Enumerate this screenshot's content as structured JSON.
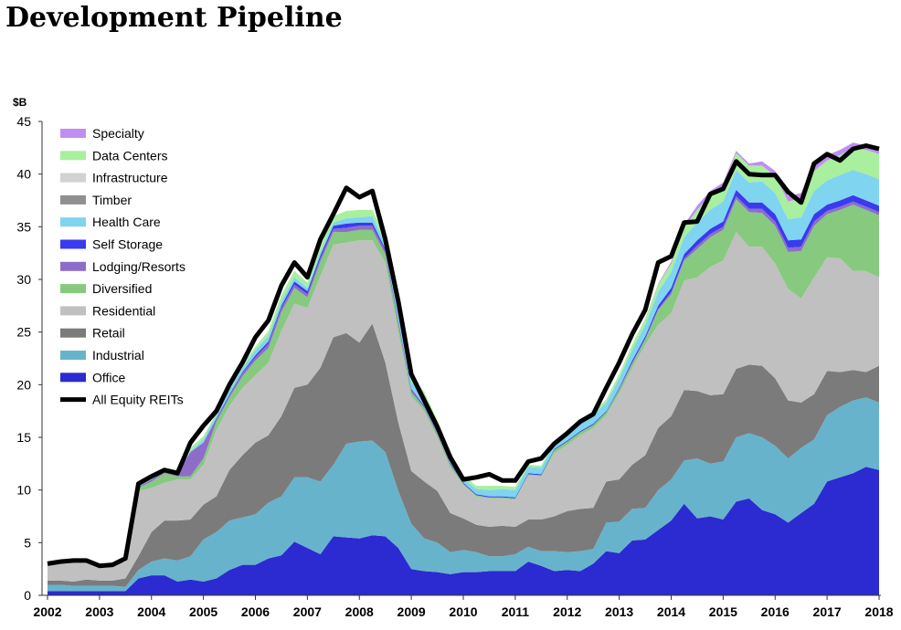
{
  "page": {
    "title": "Development Pipeline"
  },
  "chart_data": {
    "type": "area",
    "title": "Development Pipeline",
    "ylabel": "$B",
    "xlabel": "",
    "ylim": [
      0,
      45
    ],
    "xlim": [
      2002.0,
      2018.0
    ],
    "yticks": [
      "0",
      "5",
      "10",
      "15",
      "20",
      "25",
      "30",
      "35",
      "40",
      "45"
    ],
    "xticks": [
      "2002",
      "2003",
      "2004",
      "2005",
      "2006",
      "2007",
      "2008",
      "2009",
      "2010",
      "2011",
      "2012",
      "2013",
      "2014",
      "2015",
      "2016",
      "2017",
      "2018"
    ],
    "legend_position": "top-left",
    "grid": false,
    "stacked": true,
    "x": [
      2002.0,
      2002.25,
      2002.5,
      2002.75,
      2003.0,
      2003.25,
      2003.5,
      2003.75,
      2004.0,
      2004.25,
      2004.5,
      2004.75,
      2005.0,
      2005.25,
      2005.5,
      2005.75,
      2006.0,
      2006.25,
      2006.5,
      2006.75,
      2007.0,
      2007.25,
      2007.5,
      2007.75,
      2008.0,
      2008.25,
      2008.5,
      2008.75,
      2009.0,
      2009.25,
      2009.5,
      2009.75,
      2010.0,
      2010.25,
      2010.5,
      2010.75,
      2011.0,
      2011.25,
      2011.5,
      2011.75,
      2012.0,
      2012.25,
      2012.5,
      2012.75,
      2013.0,
      2013.25,
      2013.5,
      2013.75,
      2014.0,
      2014.25,
      2014.5,
      2014.75,
      2015.0,
      2015.25,
      2015.5,
      2015.75,
      2016.0,
      2016.25,
      2016.5,
      2016.75,
      2017.0,
      2017.25,
      2017.5,
      2017.75,
      2018.0
    ],
    "series": [
      {
        "name": "Office",
        "color": "#2b2bd1",
        "values": [
          0.4,
          0.4,
          0.4,
          0.4,
          0.4,
          0.4,
          0.4,
          1.6,
          1.9,
          1.9,
          1.3,
          1.5,
          1.3,
          1.6,
          2.4,
          2.9,
          2.9,
          3.5,
          3.8,
          5.1,
          4.5,
          3.9,
          5.6,
          5.5,
          5.4,
          5.7,
          5.6,
          4.5,
          2.5,
          2.3,
          2.2,
          2.0,
          2.2,
          2.2,
          2.3,
          2.3,
          2.3,
          3.2,
          2.8,
          2.3,
          2.4,
          2.3,
          3.0,
          4.2,
          4.0,
          5.2,
          5.3,
          6.2,
          7.1,
          8.7,
          7.3,
          7.5,
          7.2,
          8.9,
          9.2,
          8.1,
          7.7,
          6.9,
          7.8,
          8.7,
          10.8,
          11.2,
          11.6,
          12.2,
          11.9
        ]
      },
      {
        "name": "Industrial",
        "color": "#67b3cc",
        "values": [
          0.6,
          0.6,
          0.5,
          0.5,
          0.5,
          0.5,
          0.4,
          0.8,
          1.3,
          1.6,
          2.0,
          2.2,
          4.0,
          4.4,
          4.7,
          4.5,
          4.8,
          5.3,
          5.6,
          6.1,
          6.7,
          6.9,
          6.8,
          8.9,
          9.2,
          9.0,
          8.0,
          5.4,
          4.3,
          3.1,
          2.8,
          2.1,
          2.1,
          1.9,
          1.4,
          1.4,
          1.6,
          1.4,
          1.4,
          1.9,
          1.7,
          1.9,
          1.4,
          2.7,
          3.0,
          3.0,
          3.0,
          3.8,
          3.9,
          4.1,
          5.7,
          5.0,
          5.5,
          6.1,
          6.2,
          6.9,
          6.5,
          6.1,
          6.2,
          6.1,
          6.3,
          6.7,
          6.9,
          6.6,
          6.4
        ]
      },
      {
        "name": "Retail",
        "color": "#7b7b7b",
        "values": [
          0.4,
          0.4,
          0.4,
          0.6,
          0.5,
          0.5,
          0.8,
          1.3,
          2.8,
          3.6,
          3.8,
          3.5,
          3.3,
          3.4,
          4.8,
          5.9,
          6.8,
          6.4,
          7.6,
          8.5,
          8.8,
          10.8,
          12.1,
          10.5,
          9.4,
          11.1,
          8.5,
          6.5,
          5.0,
          5.4,
          4.9,
          3.7,
          3.0,
          2.6,
          2.8,
          2.9,
          2.6,
          2.6,
          3.0,
          3.3,
          3.9,
          4.0,
          3.9,
          3.9,
          4.0,
          4.2,
          5.0,
          5.9,
          6.0,
          6.7,
          6.4,
          6.5,
          6.4,
          6.5,
          6.5,
          6.8,
          6.4,
          5.5,
          4.3,
          4.3,
          4.2,
          3.3,
          2.9,
          2.4,
          3.5
        ]
      },
      {
        "name": "Residential",
        "color": "#c0c0c0",
        "values": [
          1.6,
          1.8,
          2.0,
          1.8,
          1.5,
          1.5,
          1.6,
          6.2,
          4.2,
          3.6,
          3.9,
          3.8,
          3.8,
          6.3,
          6.1,
          6.4,
          6.4,
          6.9,
          8.1,
          8.0,
          7.3,
          8.7,
          8.8,
          8.6,
          9.7,
          7.9,
          9.5,
          8.6,
          7.1,
          6.7,
          5.1,
          4.3,
          3.2,
          2.7,
          2.7,
          2.6,
          2.6,
          4.2,
          4.1,
          6.0,
          6.3,
          7.0,
          7.6,
          6.3,
          8.2,
          9.2,
          10.5,
          9.8,
          9.8,
          10.4,
          10.8,
          12.2,
          12.7,
          13.0,
          11.2,
          11.3,
          10.9,
          10.6,
          9.9,
          11.1,
          10.8,
          10.8,
          9.4,
          9.6,
          8.4
        ]
      },
      {
        "name": "Diversified",
        "color": "#86c97f",
        "values": [
          0.0,
          0.0,
          0.0,
          0.0,
          0.0,
          0.0,
          0.0,
          0.3,
          0.6,
          0.9,
          0.3,
          0.3,
          0.6,
          0.8,
          0.8,
          1.1,
          1.4,
          1.4,
          1.8,
          1.5,
          1.0,
          1.4,
          1.2,
          1.0,
          1.0,
          1.0,
          0.8,
          0.7,
          0.4,
          0.3,
          0.3,
          0.3,
          0.1,
          0.1,
          0.1,
          0.1,
          0.1,
          0.1,
          0.1,
          0.3,
          0.3,
          0.3,
          0.3,
          0.3,
          0.3,
          0.4,
          0.5,
          1.4,
          1.8,
          1.9,
          2.7,
          2.8,
          2.9,
          3.1,
          3.3,
          3.2,
          3.6,
          3.5,
          4.5,
          4.9,
          4.1,
          4.6,
          6.3,
          5.8,
          5.9
        ]
      },
      {
        "name": "Lodging/Resorts",
        "color": "#8e6dc9",
        "values": [
          0.0,
          0.0,
          0.0,
          0.0,
          0.0,
          0.0,
          0.0,
          0.1,
          0.2,
          0.2,
          0.3,
          2.3,
          1.5,
          0.2,
          0.2,
          0.3,
          0.3,
          0.4,
          0.4,
          0.3,
          0.3,
          0.3,
          0.3,
          0.4,
          0.4,
          0.4,
          0.3,
          0.2,
          0.2,
          0.1,
          0.1,
          0.1,
          0.0,
          0.0,
          0.0,
          0.0,
          0.0,
          0.0,
          0.0,
          0.0,
          0.0,
          0.0,
          0.0,
          0.0,
          0.1,
          0.1,
          0.1,
          0.1,
          0.2,
          0.2,
          0.3,
          0.3,
          0.3,
          0.3,
          0.3,
          0.4,
          0.4,
          0.4,
          0.4,
          0.4,
          0.3,
          0.3,
          0.3,
          0.3,
          0.3
        ]
      },
      {
        "name": "Self Storage",
        "color": "#3a3aee",
        "values": [
          0.0,
          0.0,
          0.0,
          0.0,
          0.0,
          0.0,
          0.0,
          0.0,
          0.0,
          0.0,
          0.0,
          0.0,
          0.0,
          0.1,
          0.1,
          0.1,
          0.2,
          0.2,
          0.2,
          0.3,
          0.3,
          0.3,
          0.3,
          0.4,
          0.3,
          0.3,
          0.2,
          0.2,
          0.1,
          0.1,
          0.1,
          0.1,
          0.1,
          0.1,
          0.1,
          0.1,
          0.1,
          0.1,
          0.1,
          0.1,
          0.1,
          0.1,
          0.1,
          0.1,
          0.1,
          0.2,
          0.2,
          0.3,
          0.4,
          0.4,
          0.5,
          0.5,
          0.5,
          0.6,
          0.6,
          0.6,
          0.7,
          0.7,
          0.7,
          0.7,
          0.6,
          0.6,
          0.6,
          0.6,
          0.6
        ]
      },
      {
        "name": "Health Care",
        "color": "#7fd4f0",
        "values": [
          0.0,
          0.0,
          0.0,
          0.0,
          0.0,
          0.0,
          0.0,
          0.1,
          0.1,
          0.1,
          0.1,
          0.1,
          0.3,
          0.3,
          0.4,
          0.4,
          0.5,
          0.5,
          0.4,
          0.4,
          0.3,
          0.3,
          0.3,
          0.5,
          0.5,
          0.6,
          0.5,
          0.6,
          0.7,
          0.7,
          0.6,
          0.6,
          0.4,
          0.5,
          0.6,
          0.7,
          0.7,
          0.6,
          0.6,
          0.5,
          0.6,
          0.7,
          0.8,
          0.8,
          0.9,
          1.0,
          1.1,
          1.3,
          1.5,
          1.6,
          1.7,
          1.8,
          1.9,
          1.9,
          1.9,
          2.0,
          2.0,
          2.0,
          2.1,
          2.2,
          2.3,
          2.4,
          2.4,
          2.5,
          2.5
        ]
      },
      {
        "name": "Timber",
        "color": "#909090",
        "values": [
          0.0,
          0.0,
          0.0,
          0.0,
          0.0,
          0.0,
          0.0,
          0.0,
          0.0,
          0.0,
          0.0,
          0.0,
          0.0,
          0.0,
          0.0,
          0.0,
          0.0,
          0.0,
          0.0,
          0.0,
          0.0,
          0.0,
          0.0,
          0.0,
          0.0,
          0.0,
          0.0,
          0.0,
          0.0,
          0.0,
          0.0,
          0.0,
          0.0,
          0.0,
          0.0,
          0.0,
          0.0,
          0.0,
          0.0,
          0.0,
          0.0,
          0.0,
          0.0,
          0.0,
          0.0,
          0.0,
          0.0,
          0.0,
          0.0,
          0.0,
          0.0,
          0.0,
          0.0,
          0.0,
          0.0,
          0.0,
          0.0,
          0.0,
          0.0,
          0.0,
          0.0,
          0.0,
          0.0,
          0.0,
          0.0
        ]
      },
      {
        "name": "Infrastructure",
        "color": "#d2d2d2",
        "values": [
          0.0,
          0.0,
          0.0,
          0.0,
          0.0,
          0.0,
          0.0,
          0.0,
          0.0,
          0.0,
          0.0,
          0.0,
          0.0,
          0.0,
          0.0,
          0.0,
          0.0,
          0.0,
          0.0,
          0.0,
          0.0,
          0.0,
          0.0,
          0.0,
          0.0,
          0.0,
          0.0,
          0.0,
          0.0,
          0.0,
          0.0,
          0.0,
          0.0,
          0.0,
          0.0,
          0.0,
          0.0,
          0.0,
          0.0,
          0.0,
          0.0,
          0.0,
          0.0,
          0.0,
          0.0,
          0.0,
          0.0,
          0.0,
          0.0,
          0.0,
          0.0,
          0.0,
          0.0,
          0.0,
          0.0,
          0.0,
          0.0,
          0.0,
          0.0,
          0.0,
          0.0,
          0.0,
          0.0,
          0.0,
          0.0
        ]
      },
      {
        "name": "Data Centers",
        "color": "#a8ef9e",
        "values": [
          0.0,
          0.0,
          0.0,
          0.0,
          0.0,
          0.0,
          0.0,
          0.2,
          0.2,
          0.2,
          0.2,
          0.3,
          0.3,
          0.2,
          0.3,
          0.3,
          0.3,
          0.5,
          0.6,
          0.6,
          0.5,
          0.6,
          0.6,
          0.7,
          0.7,
          0.6,
          0.6,
          0.6,
          0.6,
          0.6,
          0.5,
          0.4,
          0.3,
          0.3,
          0.4,
          0.3,
          0.3,
          0.2,
          0.2,
          0.2,
          0.3,
          0.3,
          0.3,
          0.3,
          0.4,
          0.5,
          0.6,
          0.7,
          0.8,
          0.9,
          1.2,
          1.4,
          1.5,
          1.6,
          1.6,
          1.5,
          1.6,
          1.7,
          1.8,
          1.9,
          1.9,
          1.9,
          2.1,
          2.3,
          2.4
        ]
      },
      {
        "name": "Specialty",
        "color": "#c08ef2",
        "values": [
          0.0,
          0.0,
          0.0,
          0.0,
          0.0,
          0.0,
          0.0,
          0.0,
          0.0,
          0.0,
          0.0,
          0.0,
          0.0,
          0.0,
          0.0,
          0.0,
          0.0,
          0.0,
          0.0,
          0.0,
          0.0,
          0.0,
          0.0,
          0.0,
          0.0,
          0.0,
          0.0,
          0.0,
          0.0,
          0.0,
          0.0,
          0.0,
          0.0,
          0.0,
          0.0,
          0.0,
          0.0,
          0.0,
          0.0,
          0.0,
          0.0,
          0.0,
          0.0,
          0.0,
          0.0,
          0.0,
          0.0,
          0.1,
          0.2,
          0.3,
          0.4,
          0.4,
          0.3,
          0.2,
          0.2,
          0.4,
          0.5,
          0.5,
          0.5,
          0.5,
          0.5,
          0.5,
          0.5,
          0.4,
          0.3
        ]
      }
    ],
    "total_line": {
      "name": "All Equity REITs",
      "color": "#000000",
      "values": [
        3.0,
        3.2,
        3.3,
        3.3,
        2.8,
        2.9,
        3.5,
        10.6,
        11.3,
        11.9,
        11.6,
        14.5,
        16.1,
        17.5,
        20.0,
        22.1,
        24.5,
        26.1,
        29.4,
        31.6,
        30.2,
        33.8,
        36.2,
        38.7,
        37.8,
        38.4,
        33.8,
        27.9,
        21.0,
        18.5,
        16.0,
        13.1,
        11.0,
        11.2,
        11.5,
        10.9,
        10.9,
        12.7,
        13.0,
        14.4,
        15.4,
        16.5,
        17.2,
        19.7,
        22.1,
        24.8,
        27.1,
        31.6,
        32.2,
        35.4,
        35.5,
        38.1,
        38.6,
        41.2,
        40.0,
        39.9,
        39.9,
        38.3,
        37.3,
        41.0,
        41.9,
        41.3,
        42.4,
        42.7,
        42.4
      ]
    },
    "legend_order": [
      "Specialty",
      "Data Centers",
      "Infrastructure",
      "Timber",
      "Health Care",
      "Self Storage",
      "Lodging/Resorts",
      "Diversified",
      "Residential",
      "Retail",
      "Industrial",
      "Office",
      "All Equity REITs"
    ]
  }
}
